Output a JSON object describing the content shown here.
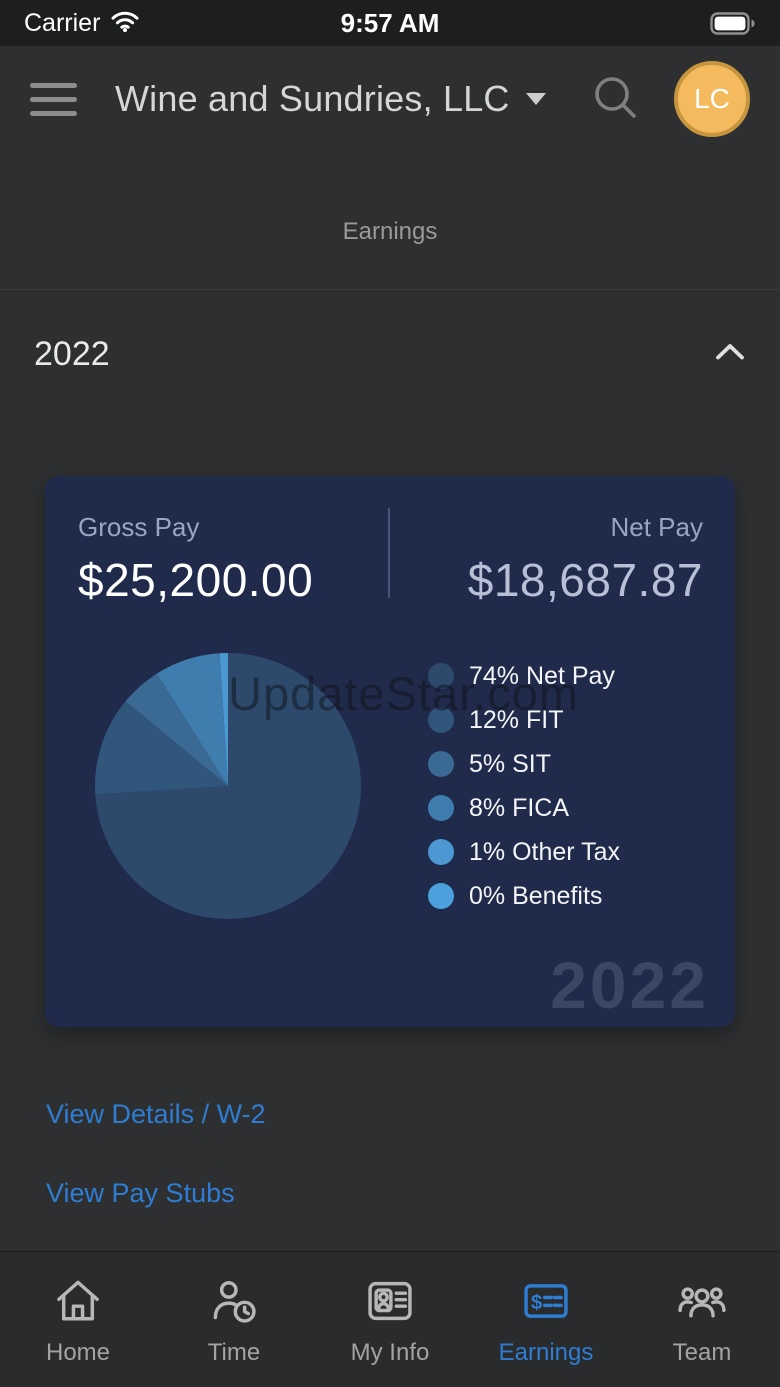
{
  "status_bar": {
    "carrier": "Carrier",
    "time": "9:57 AM",
    "wifi_icon": "wifi-icon",
    "battery_icon": "battery-full-icon"
  },
  "header": {
    "company": "Wine and Sundries, LLC",
    "menu_icon": "hamburger-icon",
    "dropdown_icon": "chevron-down-icon",
    "search_icon": "search-icon",
    "avatar_initials": "LC",
    "avatar_bg": "#f6ba5e"
  },
  "page_title": "Earnings",
  "section": {
    "year": "2022",
    "collapse_icon": "chevron-up-icon"
  },
  "summary": {
    "gross_label": "Gross Pay",
    "gross_value": "$25,200.00",
    "net_label": "Net Pay",
    "net_value": "$18,687.87"
  },
  "watermark": "UpdateStar.com",
  "chart_data": {
    "type": "pie",
    "title": "2022 earnings breakdown",
    "start_angle_deg": 0,
    "direction": "clockwise",
    "legend_position": "right",
    "year_label": "2022",
    "series": [
      {
        "name": "Net Pay",
        "value_pct": 74,
        "legend_label": "74% Net Pay",
        "color": "#2d4a6c"
      },
      {
        "name": "FIT",
        "value_pct": 12,
        "legend_label": "12% FIT",
        "color": "#31567c"
      },
      {
        "name": "SIT",
        "value_pct": 5,
        "legend_label": "5% SIT",
        "color": "#3a6a94"
      },
      {
        "name": "FICA",
        "value_pct": 8,
        "legend_label": "8% FICA",
        "color": "#3f7dae"
      },
      {
        "name": "Other Tax",
        "value_pct": 1,
        "legend_label": "1% Other Tax",
        "color": "#4b98d3"
      },
      {
        "name": "Benefits",
        "value_pct": 0,
        "legend_label": "0% Benefits",
        "color": "#4ba0dd"
      }
    ]
  },
  "links": {
    "details": "View Details / W-2",
    "paystubs": "View Pay Stubs"
  },
  "nav": {
    "active_color": "#2e7dd2",
    "items": [
      {
        "label": "Home",
        "icon": "home-icon",
        "active": false
      },
      {
        "label": "Time",
        "icon": "time-icon",
        "active": false
      },
      {
        "label": "My Info",
        "icon": "my-info-icon",
        "active": false
      },
      {
        "label": "Earnings",
        "icon": "earnings-icon",
        "active": true
      },
      {
        "label": "Team",
        "icon": "team-icon",
        "active": false
      }
    ]
  }
}
